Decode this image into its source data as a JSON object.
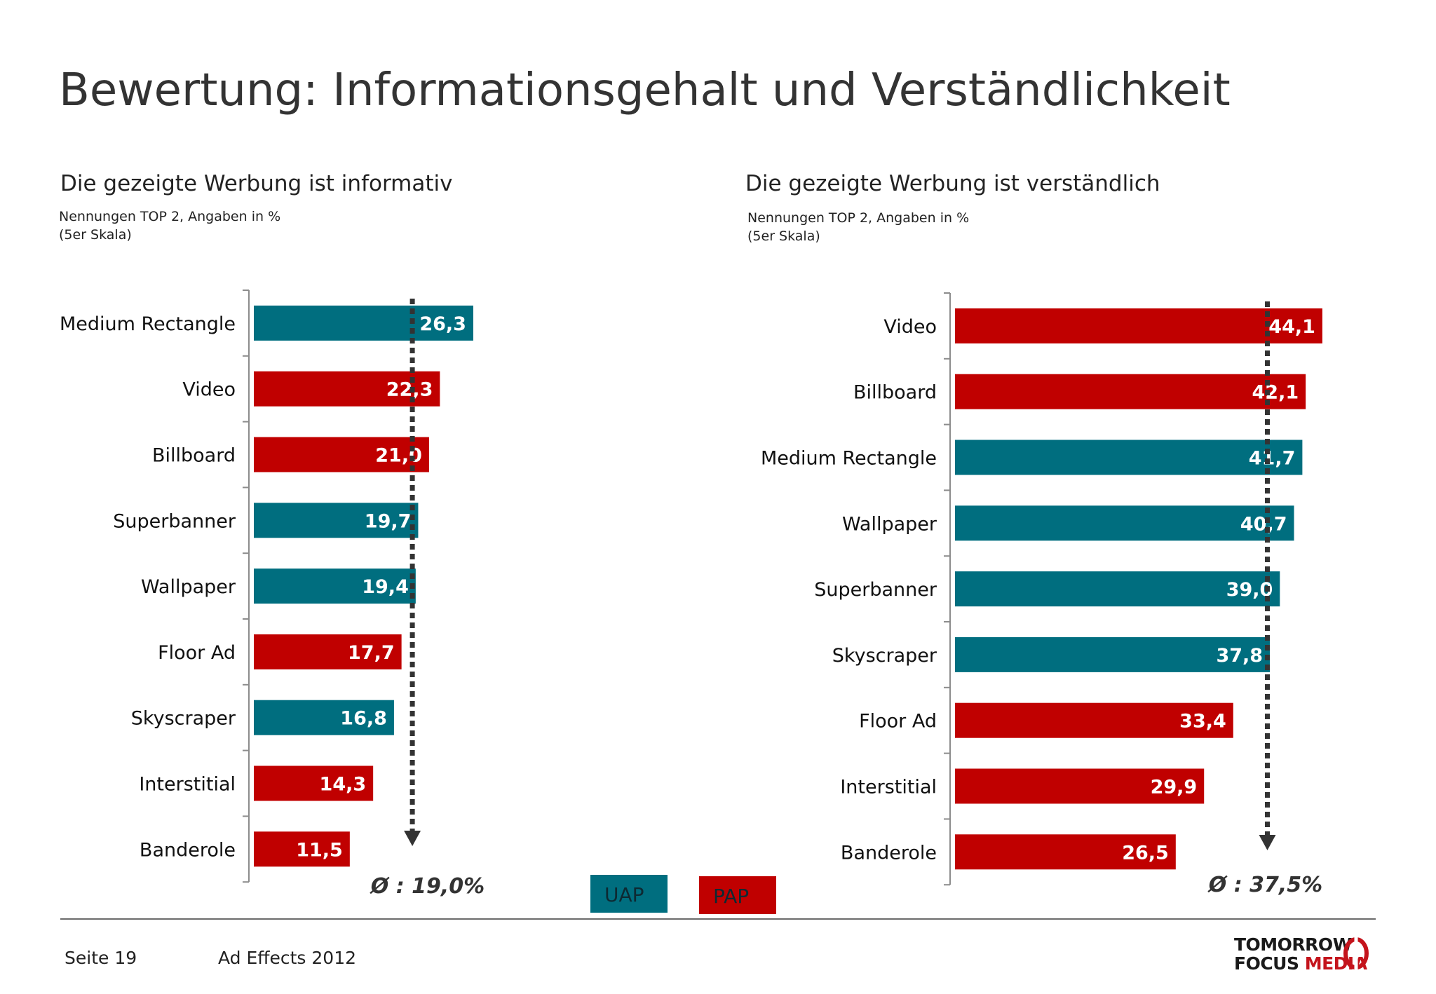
{
  "title": "Bewertung: Informationsgehalt und Verständlichkeit",
  "colors": {
    "uap": "#006e7f",
    "pap": "#c00000",
    "arrow": "#333333"
  },
  "legend": {
    "uap": "UAP",
    "pap": "PAP"
  },
  "footer": {
    "page": "Seite 19",
    "report": "Ad Effects 2012"
  },
  "logo": {
    "line1": "TOMORROW",
    "line2a": "FOCUS ",
    "line2b": "MEDIA"
  },
  "chart_data": [
    {
      "type": "bar",
      "orientation": "horizontal",
      "title": "Die gezeigte Werbung ist informativ",
      "note_line1": "Nennungen TOP 2, Angaben in %",
      "note_line2": "(5er Skala)",
      "categories": [
        "Medium Rectangle",
        "Video",
        "Billboard",
        "Superbanner",
        "Wallpaper",
        "Floor Ad",
        "Skyscraper",
        "Interstitial",
        "Banderole"
      ],
      "values": [
        26.3,
        22.3,
        21.0,
        19.7,
        19.4,
        17.7,
        16.8,
        14.3,
        11.5
      ],
      "labels": [
        "26,3",
        "22,3",
        "21,0",
        "19,7",
        "19,4",
        "17,7",
        "16,8",
        "14,3",
        "11,5"
      ],
      "groups": [
        "UAP",
        "PAP",
        "PAP",
        "UAP",
        "UAP",
        "PAP",
        "UAP",
        "PAP",
        "PAP"
      ],
      "average": 19.0,
      "average_label": "Ø : 19,0%"
    },
    {
      "type": "bar",
      "orientation": "horizontal",
      "title": "Die gezeigte Werbung ist verständlich",
      "note_line1": "Nennungen TOP 2, Angaben in %",
      "note_line2": "(5er Skala)",
      "categories": [
        "Video",
        "Billboard",
        "Medium Rectangle",
        "Wallpaper",
        "Superbanner",
        "Skyscraper",
        "Floor Ad",
        "Interstitial",
        "Banderole"
      ],
      "values": [
        44.1,
        42.1,
        41.7,
        40.7,
        39.0,
        37.8,
        33.4,
        29.9,
        26.5
      ],
      "labels": [
        "44,1",
        "42,1",
        "41,7",
        "40,7",
        "39,0",
        "37,8",
        "33,4",
        "29,9",
        "26,5"
      ],
      "groups": [
        "PAP",
        "PAP",
        "UAP",
        "UAP",
        "UAP",
        "UAP",
        "PAP",
        "PAP",
        "PAP"
      ],
      "average": 37.5,
      "average_label": "Ø : 37,5%"
    }
  ]
}
